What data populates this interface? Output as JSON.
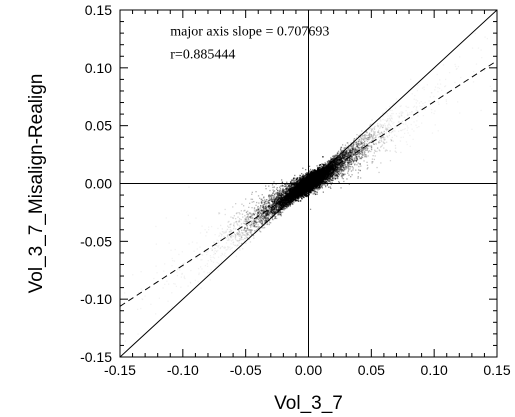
{
  "chart_data": {
    "type": "scatter",
    "style": "density-cloud",
    "xlabel": "Vol_3_7",
    "ylabel": "Vol_3_7_Misalign-Realign",
    "xlim": [
      -0.15,
      0.15
    ],
    "ylim": [
      -0.15,
      0.15
    ],
    "x_ticks": [
      "-0.15",
      "-0.10",
      "-0.05",
      "0.00",
      "0.05",
      "0.10",
      "0.15"
    ],
    "y_ticks": [
      "-0.15",
      "-0.10",
      "-0.05",
      "0.00",
      "0.05",
      "0.10",
      "0.15"
    ],
    "grid": false,
    "annotations": [
      "major axis slope = 0.707693",
      "r=0.885444"
    ],
    "lines": [
      {
        "style": "solid",
        "slope": 1,
        "intercept": 0
      },
      {
        "style": "dashed",
        "slope": 0.707693,
        "intercept": 0
      }
    ],
    "reference_lines": {
      "x": 0,
      "y": 0
    },
    "cloud": {
      "center": [
        0.0,
        0.0
      ],
      "slope": 0.707693,
      "r": 0.885444,
      "color": "#000000"
    }
  }
}
